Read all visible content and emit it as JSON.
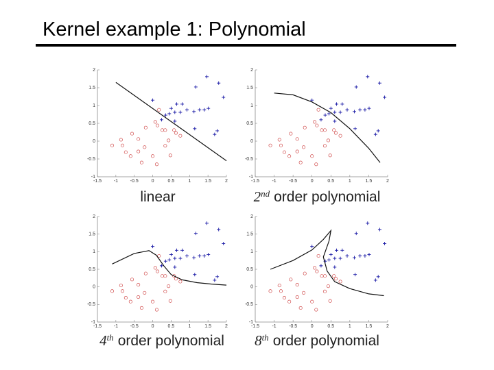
{
  "title": "Kernel example 1: Polynomial",
  "chart_data": [
    {
      "type": "scatter",
      "xlim": [
        -1.5,
        2
      ],
      "ylim": [
        -1,
        2
      ],
      "xticks": [
        -1.5,
        -1,
        -0.5,
        0,
        0.5,
        1,
        1.5,
        2
      ],
      "yticks": [
        -1,
        -0.5,
        0,
        0.5,
        1,
        1.5,
        2
      ],
      "label_parts": [
        "linear"
      ],
      "series": [
        {
          "marker": "plus",
          "color": "#1a1aa6",
          "x": [
            1.47,
            1.17,
            1.79,
            1.92,
            0.65,
            0.8,
            0.5,
            0.93,
            0.6,
            0.75,
            1.12,
            1.27,
            1.4,
            1.51,
            0.45,
            1.75,
            1.68,
            1.14,
            0,
            0.24,
            0.35,
            0.6
          ],
          "y": [
            1.81,
            1.52,
            1.63,
            1.23,
            1.04,
            1.04,
            0.92,
            0.88,
            0.81,
            0.81,
            0.83,
            0.88,
            0.88,
            0.92,
            0.77,
            0.29,
            0.19,
            0.35,
            1.15,
            0.6,
            0.73,
            0.56
          ]
        },
        {
          "marker": "circle",
          "color": "#d04a4a",
          "x": [
            0.17,
            0.07,
            0.26,
            0.34,
            0.13,
            0.63,
            0.75,
            0.58,
            -1.1,
            -0.82,
            -0.73,
            -0.6,
            -0.39,
            -0.22,
            -0.3,
            0,
            0.11,
            0.34,
            0.48,
            -0.19,
            -0.56,
            0.43,
            -0.86,
            -0.39
          ],
          "y": [
            0.88,
            0.54,
            0.31,
            0.31,
            0.44,
            0.23,
            0.15,
            0.31,
            -0.12,
            -0.12,
            -0.31,
            -0.42,
            0.06,
            -0.17,
            -0.6,
            -0.42,
            -0.65,
            -0.13,
            -0.4,
            0.38,
            0.21,
            0.02,
            0.04,
            -0.29
          ]
        },
        {
          "marker": "line",
          "color": "#111111",
          "x": [
            -1,
            2
          ],
          "y": [
            1.65,
            -0.55
          ]
        }
      ]
    },
    {
      "type": "scatter",
      "xlim": [
        -1.5,
        2
      ],
      "ylim": [
        -1,
        2
      ],
      "xticks": [
        -1.5,
        -1,
        -0.5,
        0,
        0.5,
        1,
        1.5,
        2
      ],
      "yticks": [
        -1,
        -0.5,
        0,
        0.5,
        1,
        1.5,
        2
      ],
      "label_parts": [
        "2",
        "nd",
        "order polynomial"
      ],
      "series": [
        {
          "marker": "plus",
          "color": "#1a1aa6",
          "x": [
            1.47,
            1.17,
            1.79,
            1.92,
            0.65,
            0.8,
            0.5,
            0.93,
            0.6,
            0.75,
            1.12,
            1.27,
            1.4,
            1.51,
            0.45,
            1.75,
            1.68,
            1.14,
            0,
            0.24,
            0.35,
            0.6
          ],
          "y": [
            1.81,
            1.52,
            1.63,
            1.23,
            1.04,
            1.04,
            0.92,
            0.88,
            0.81,
            0.81,
            0.83,
            0.88,
            0.88,
            0.92,
            0.77,
            0.29,
            0.19,
            0.35,
            1.15,
            0.6,
            0.73,
            0.56
          ]
        },
        {
          "marker": "circle",
          "color": "#d04a4a",
          "x": [
            0.17,
            0.07,
            0.26,
            0.34,
            0.13,
            0.63,
            0.75,
            0.58,
            -1.1,
            -0.82,
            -0.73,
            -0.6,
            -0.39,
            -0.22,
            -0.3,
            0,
            0.11,
            0.34,
            0.48,
            -0.19,
            -0.56,
            0.43,
            -0.86,
            -0.39
          ],
          "y": [
            0.88,
            0.54,
            0.31,
            0.31,
            0.44,
            0.23,
            0.15,
            0.31,
            -0.12,
            -0.12,
            -0.31,
            -0.42,
            0.06,
            -0.17,
            -0.6,
            -0.42,
            -0.65,
            -0.13,
            -0.4,
            0.38,
            0.21,
            0.02,
            0.04,
            -0.29
          ]
        },
        {
          "marker": "line",
          "color": "#111111",
          "x": [
            -1,
            -0.5,
            0,
            0.5,
            1,
            1.5,
            1.8
          ],
          "y": [
            1.35,
            1.3,
            1.1,
            0.8,
            0.35,
            -0.2,
            -0.6
          ]
        }
      ]
    },
    {
      "type": "scatter",
      "xlim": [
        -1.5,
        2
      ],
      "ylim": [
        -1,
        2
      ],
      "xticks": [
        -1.5,
        -1,
        -0.5,
        0,
        0.5,
        1,
        1.5,
        2
      ],
      "yticks": [
        -1,
        -0.5,
        0,
        0.5,
        1,
        1.5,
        2
      ],
      "label_parts": [
        "4",
        "th",
        "order polynomial"
      ],
      "series": [
        {
          "marker": "plus",
          "color": "#1a1aa6",
          "x": [
            1.47,
            1.17,
            1.79,
            1.92,
            0.65,
            0.8,
            0.5,
            0.93,
            0.6,
            0.75,
            1.12,
            1.27,
            1.4,
            1.51,
            0.45,
            1.75,
            1.68,
            1.14,
            0,
            0.24,
            0.35,
            0.6
          ],
          "y": [
            1.81,
            1.52,
            1.63,
            1.23,
            1.04,
            1.04,
            0.92,
            0.88,
            0.81,
            0.81,
            0.83,
            0.88,
            0.88,
            0.92,
            0.77,
            0.29,
            0.19,
            0.35,
            1.15,
            0.6,
            0.73,
            0.56
          ]
        },
        {
          "marker": "circle",
          "color": "#d04a4a",
          "x": [
            0.17,
            0.07,
            0.26,
            0.34,
            0.13,
            0.63,
            0.75,
            0.58,
            -1.1,
            -0.82,
            -0.73,
            -0.6,
            -0.39,
            -0.22,
            -0.3,
            0,
            0.11,
            0.34,
            0.48,
            -0.19,
            -0.56,
            0.43,
            -0.86,
            -0.39
          ],
          "y": [
            0.88,
            0.54,
            0.31,
            0.31,
            0.44,
            0.23,
            0.15,
            0.31,
            -0.12,
            -0.12,
            -0.31,
            -0.42,
            0.06,
            -0.17,
            -0.6,
            -0.42,
            -0.65,
            -0.13,
            -0.4,
            0.38,
            0.21,
            0.02,
            0.04,
            -0.29
          ]
        },
        {
          "marker": "line",
          "color": "#111111",
          "x": [
            -1.1,
            -0.5,
            -0.1,
            0.1,
            0.3,
            0.5,
            0.8,
            1.2,
            1.6,
            2
          ],
          "y": [
            0.65,
            0.95,
            1.03,
            0.9,
            0.6,
            0.35,
            0.2,
            0.12,
            0.08,
            0.05
          ]
        }
      ]
    },
    {
      "type": "scatter",
      "xlim": [
        -1.5,
        2
      ],
      "ylim": [
        -1,
        2
      ],
      "xticks": [
        -1.5,
        -1,
        -0.5,
        0,
        0.5,
        1,
        1.5,
        2
      ],
      "yticks": [
        -1,
        -0.5,
        0,
        0.5,
        1,
        1.5,
        2
      ],
      "label_parts": [
        "8",
        "th",
        "order polynomial"
      ],
      "series": [
        {
          "marker": "plus",
          "color": "#1a1aa6",
          "x": [
            1.47,
            1.17,
            1.79,
            1.92,
            0.65,
            0.8,
            0.5,
            0.93,
            0.6,
            0.75,
            1.12,
            1.27,
            1.4,
            1.51,
            0.45,
            1.75,
            1.68,
            1.14,
            0,
            0.24,
            0.35,
            0.6
          ],
          "y": [
            1.81,
            1.52,
            1.63,
            1.23,
            1.04,
            1.04,
            0.92,
            0.88,
            0.81,
            0.81,
            0.83,
            0.88,
            0.88,
            0.92,
            0.77,
            0.29,
            0.19,
            0.35,
            1.15,
            0.6,
            0.73,
            0.56
          ]
        },
        {
          "marker": "circle",
          "color": "#d04a4a",
          "x": [
            0.17,
            0.07,
            0.26,
            0.34,
            0.13,
            0.63,
            0.75,
            0.58,
            -1.1,
            -0.82,
            -0.73,
            -0.6,
            -0.39,
            -0.22,
            -0.3,
            0,
            0.11,
            0.34,
            0.48,
            -0.19,
            -0.56,
            0.43,
            -0.86,
            -0.39
          ],
          "y": [
            0.88,
            0.54,
            0.31,
            0.31,
            0.44,
            0.23,
            0.15,
            0.31,
            -0.12,
            -0.12,
            -0.31,
            -0.42,
            0.06,
            -0.17,
            -0.6,
            -0.42,
            -0.65,
            -0.13,
            -0.4,
            0.38,
            0.21,
            0.02,
            0.04,
            -0.29
          ]
        },
        {
          "marker": "line",
          "color": "#111111",
          "x": [
            -1.1,
            -0.5,
            0,
            0.3,
            0.5,
            0.45,
            0.3,
            0.4,
            0.6,
            1,
            1.5,
            1.9
          ],
          "y": [
            0.5,
            0.75,
            1.05,
            1.35,
            1.6,
            1.3,
            0.85,
            0.45,
            0.15,
            -0.05,
            -0.2,
            -0.25
          ]
        }
      ]
    }
  ]
}
